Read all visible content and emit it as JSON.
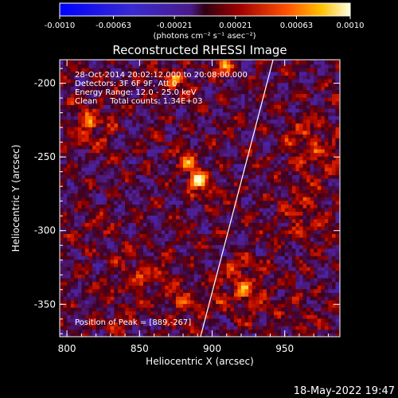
{
  "chart_data": {
    "type": "heatmap",
    "title": "Reconstructed RHESSI Image",
    "xlabel": "Heliocentric X (arcsec)",
    "ylabel": "Heliocentric Y (arcsec)",
    "x_ticks": [
      "800",
      "850",
      "900",
      "950"
    ],
    "y_ticks": [
      "-200",
      "-250",
      "-300",
      "-350"
    ],
    "xlim": [
      795,
      988
    ],
    "ylim": [
      -372,
      -184
    ],
    "colorbar": {
      "ticks": [
        "-0.0010",
        "-0.00063",
        "-0.00021",
        "0.00021",
        "0.00063",
        "0.0010"
      ],
      "range": [
        -0.001,
        0.001
      ],
      "units_label": "(photons cm⁻² s⁻¹ asec⁻²)"
    },
    "info_lines": [
      "28-Oct-2014 20:02:12.000 to 20:08:00.000",
      "Detectors: 3F 6F 9F, Att 0",
      "Energy Range: 12.0 - 25.0 keV",
      "Clean     Total counts: 1.34E+03"
    ],
    "peak_label": "Position of Peak = [889,-267]",
    "peak": {
      "x": 889,
      "y": -267
    },
    "limb_line": [
      [
        892,
        -372
      ],
      [
        942,
        -184
      ]
    ],
    "sources": [
      {
        "x": 889,
        "y": -267,
        "amp": 1.0,
        "sigma": 5
      },
      {
        "x": 883,
        "y": -255,
        "amp": 0.55,
        "sigma": 7
      },
      {
        "x": 897,
        "y": -276,
        "amp": 0.45,
        "sigma": 6
      },
      {
        "x": 815,
        "y": -228,
        "amp": 0.6,
        "sigma": 10
      },
      {
        "x": 872,
        "y": -198,
        "amp": 0.5,
        "sigma": 8
      },
      {
        "x": 907,
        "y": -190,
        "amp": 0.55,
        "sigma": 6
      },
      {
        "x": 968,
        "y": -245,
        "amp": 0.55,
        "sigma": 12
      },
      {
        "x": 960,
        "y": -290,
        "amp": 0.4,
        "sigma": 12
      },
      {
        "x": 920,
        "y": -340,
        "amp": 0.6,
        "sigma": 12
      },
      {
        "x": 850,
        "y": -330,
        "amp": 0.45,
        "sigma": 11
      },
      {
        "x": 880,
        "y": -350,
        "amp": 0.4,
        "sigma": 9
      },
      {
        "x": 815,
        "y": -300,
        "amp": 0.3,
        "sigma": 8
      },
      {
        "x": 960,
        "y": -360,
        "amp": 0.35,
        "sigma": 8
      },
      {
        "x": 830,
        "y": -365,
        "amp": 0.3,
        "sigma": 7
      }
    ],
    "colors": {
      "background": "#000000",
      "foreground": "#ffffff"
    }
  },
  "footer": {
    "date": "18-May-2022 19:47"
  }
}
